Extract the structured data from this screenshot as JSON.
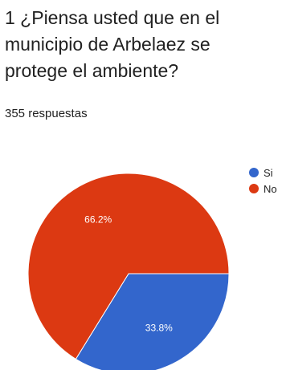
{
  "question": {
    "title": "1 ¿Piensa usted que en el municipio de Arbelaez se protege el ambiente?",
    "responses": "355 respuestas"
  },
  "chart_data": {
    "type": "pie",
    "categories": [
      "Si",
      "No"
    ],
    "values": [
      33.8,
      66.2
    ],
    "labels": [
      "33.8%",
      "66.2%"
    ],
    "colors": [
      "#3366cc",
      "#dc3912"
    ],
    "legend_position": "right"
  }
}
